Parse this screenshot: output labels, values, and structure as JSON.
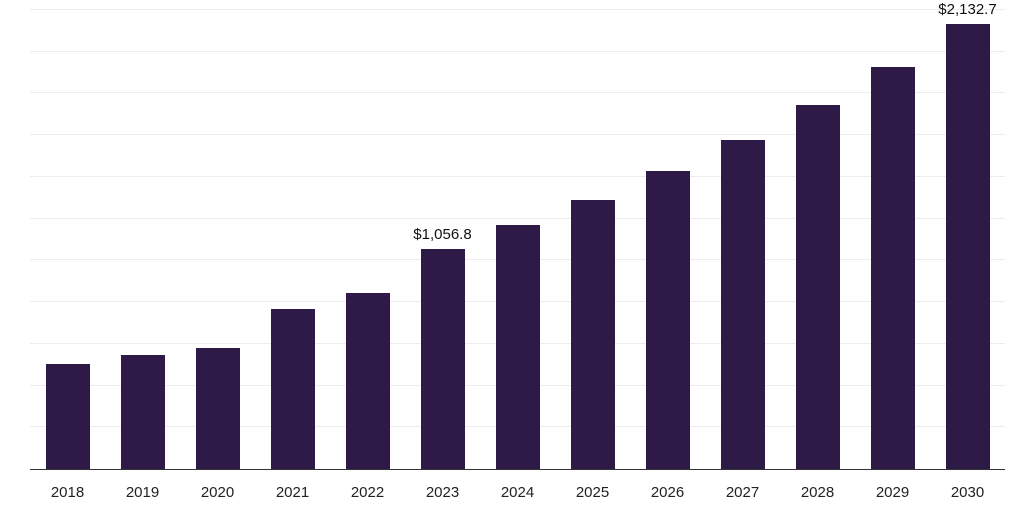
{
  "chart_data": {
    "type": "bar",
    "title": "",
    "xlabel": "",
    "ylabel": "",
    "categories": [
      "2018",
      "2019",
      "2020",
      "2021",
      "2022",
      "2023",
      "2024",
      "2025",
      "2026",
      "2027",
      "2028",
      "2029",
      "2030"
    ],
    "values": [
      505,
      545,
      580,
      765,
      845,
      1056.8,
      1168.3,
      1291.6,
      1427.8,
      1578.5,
      1745.0,
      1929.1,
      2132.7
    ],
    "data_labels": [
      {
        "index": 5,
        "text": "$1,056.8"
      },
      {
        "index": 12,
        "text": "$2,132.7"
      }
    ],
    "bar_color": "#2e1a47",
    "ylim": [
      0,
      2200
    ],
    "gridline_step": 200,
    "grid": true,
    "legend_position": "none",
    "y_tick_labels_visible": false
  }
}
